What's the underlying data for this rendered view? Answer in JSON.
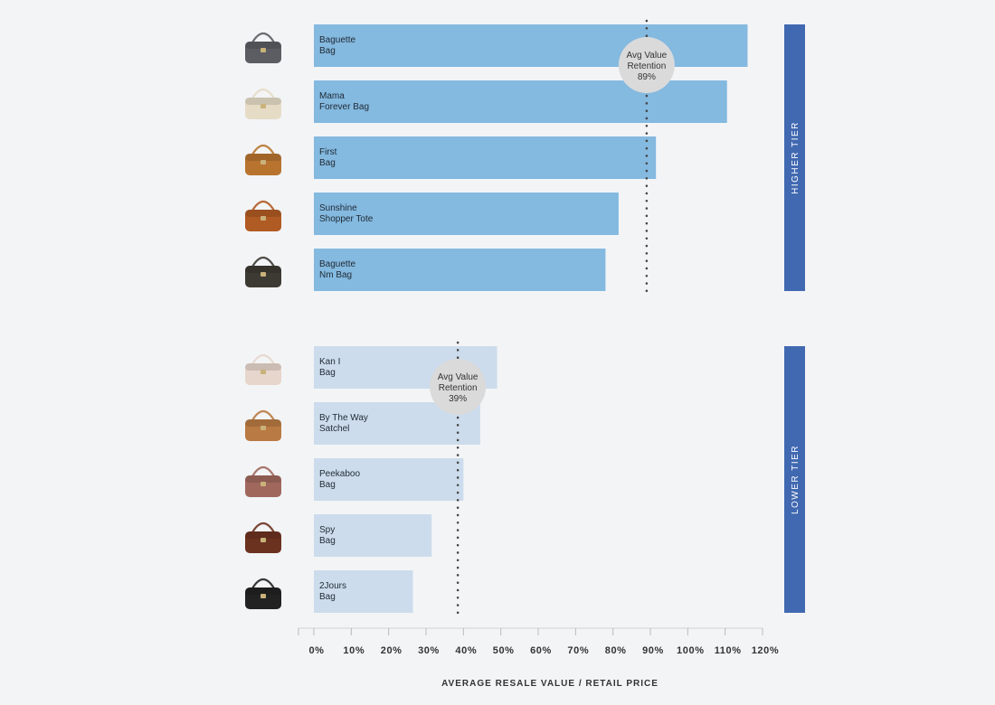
{
  "chart_data": {
    "type": "bar",
    "orientation": "horizontal",
    "xlabel": "AVERAGE RESALE VALUE / RETAIL PRICE",
    "xlim": [
      0,
      120
    ],
    "ticks": [
      "0%",
      "10%",
      "20%",
      "30%",
      "40%",
      "50%",
      "60%",
      "70%",
      "80%",
      "90%",
      "100%",
      "110%",
      "120%"
    ],
    "grid": false,
    "groups": [
      {
        "tier_label": "HIGHER TIER",
        "bar_color": "#84b9e0",
        "tier_color": "#4169b1",
        "avg": {
          "line1": "Avg Value",
          "line2": "Retention",
          "value_label": "89%",
          "value": 89
        },
        "bars": [
          {
            "lines": [
              "Baguette",
              "Bag"
            ],
            "value": 116,
            "thumb_icon": "baguette-bag-icon",
            "thumb_color": "#5b5d63"
          },
          {
            "lines": [
              "Mama",
              "Forever Bag"
            ],
            "value": 110.5,
            "thumb_icon": "mama-forever-bag-icon",
            "thumb_color": "#e6dcc6"
          },
          {
            "lines": [
              "First",
              "Bag"
            ],
            "value": 91.5,
            "thumb_icon": "first-bag-icon",
            "thumb_color": "#b8742f"
          },
          {
            "lines": [
              "Sunshine",
              "Shopper Tote"
            ],
            "value": 81.5,
            "thumb_icon": "sunshine-shopper-tote-icon",
            "thumb_color": "#b05a24"
          },
          {
            "lines": [
              "Baguette",
              "Nm Bag"
            ],
            "value": 78,
            "thumb_icon": "baguette-nm-bag-icon",
            "thumb_color": "#3d3a33"
          }
        ]
      },
      {
        "tier_label": "LOWER TIER",
        "bar_color": "#ccdcec",
        "tier_color": "#4169b1",
        "avg": {
          "line1": "Avg Value",
          "line2": "Retention",
          "value_label": "39%",
          "value": 38.5
        },
        "bars": [
          {
            "lines": [
              "Kan I",
              "Bag"
            ],
            "value": 49,
            "thumb_icon": "kan-i-bag-icon",
            "thumb_color": "#e7d6cc"
          },
          {
            "lines": [
              "By The Way",
              "Satchel"
            ],
            "value": 44.5,
            "thumb_icon": "by-the-way-satchel-icon",
            "thumb_color": "#b97a43"
          },
          {
            "lines": [
              "Peekaboo",
              "Bag"
            ],
            "value": 40,
            "thumb_icon": "peekaboo-bag-icon",
            "thumb_color": "#a0685d"
          },
          {
            "lines": [
              "Spy",
              "Bag"
            ],
            "value": 31.5,
            "thumb_icon": "spy-bag-icon",
            "thumb_color": "#6b3220"
          },
          {
            "lines": [
              "2Jours",
              "Bag"
            ],
            "value": 26.5,
            "thumb_icon": "2jours-bag-icon",
            "thumb_color": "#222222"
          }
        ]
      }
    ]
  }
}
